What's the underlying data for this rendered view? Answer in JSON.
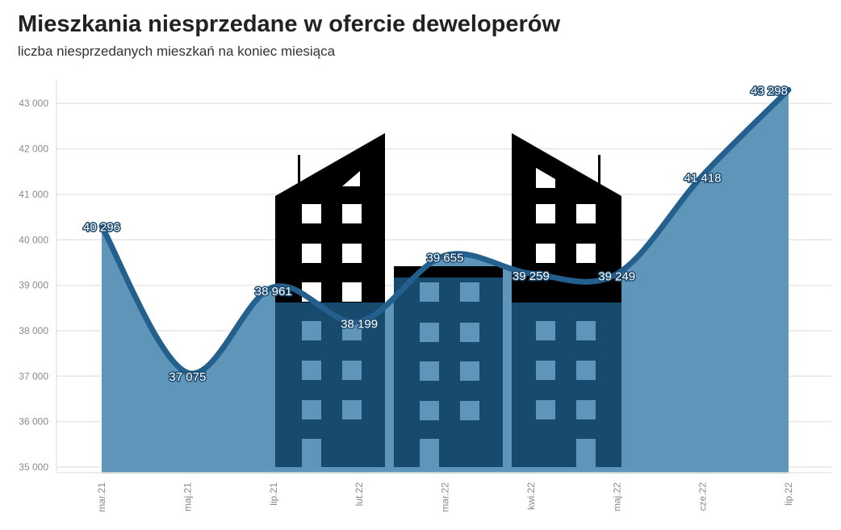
{
  "header": {
    "title": "Mieszkania niesprzedane w ofercie deweloperów",
    "subtitle": "liczba niesprzedanych mieszkań na koniec miesiąca"
  },
  "colors": {
    "area": "#5e95b8",
    "line": "#23608d",
    "building_dark": "#174a6c",
    "building_black": "#000000",
    "grid": "#e6e6e6"
  },
  "chart_data": {
    "type": "area",
    "title": "Mieszkania niesprzedane w ofercie deweloperów",
    "subtitle": "liczba niesprzedanych mieszkań na koniec miesiąca",
    "xlabel": "",
    "ylabel": "",
    "categories": [
      "mar.21",
      "maj.21",
      "lip.21",
      "lut.22",
      "mar.22",
      "kwi.22",
      "maj.22",
      "cze.22",
      "lip.22"
    ],
    "values": [
      40296,
      37075,
      38961,
      38199,
      39655,
      39259,
      39249,
      41418,
      43298
    ],
    "value_labels": [
      "40 296",
      "37 075",
      "38 961",
      "38 199",
      "39 655",
      "39 259",
      "39 249",
      "41 418",
      "43 298"
    ],
    "ylim": [
      35000,
      43500
    ],
    "yticks": [
      35000,
      36000,
      37000,
      38000,
      39000,
      40000,
      41000,
      42000,
      43000
    ],
    "ytick_labels": [
      "35 000",
      "36 000",
      "37 000",
      "38 000",
      "39 000",
      "40 000",
      "41 000",
      "42 000",
      "43 000"
    ],
    "grid": true,
    "legend": "none"
  }
}
